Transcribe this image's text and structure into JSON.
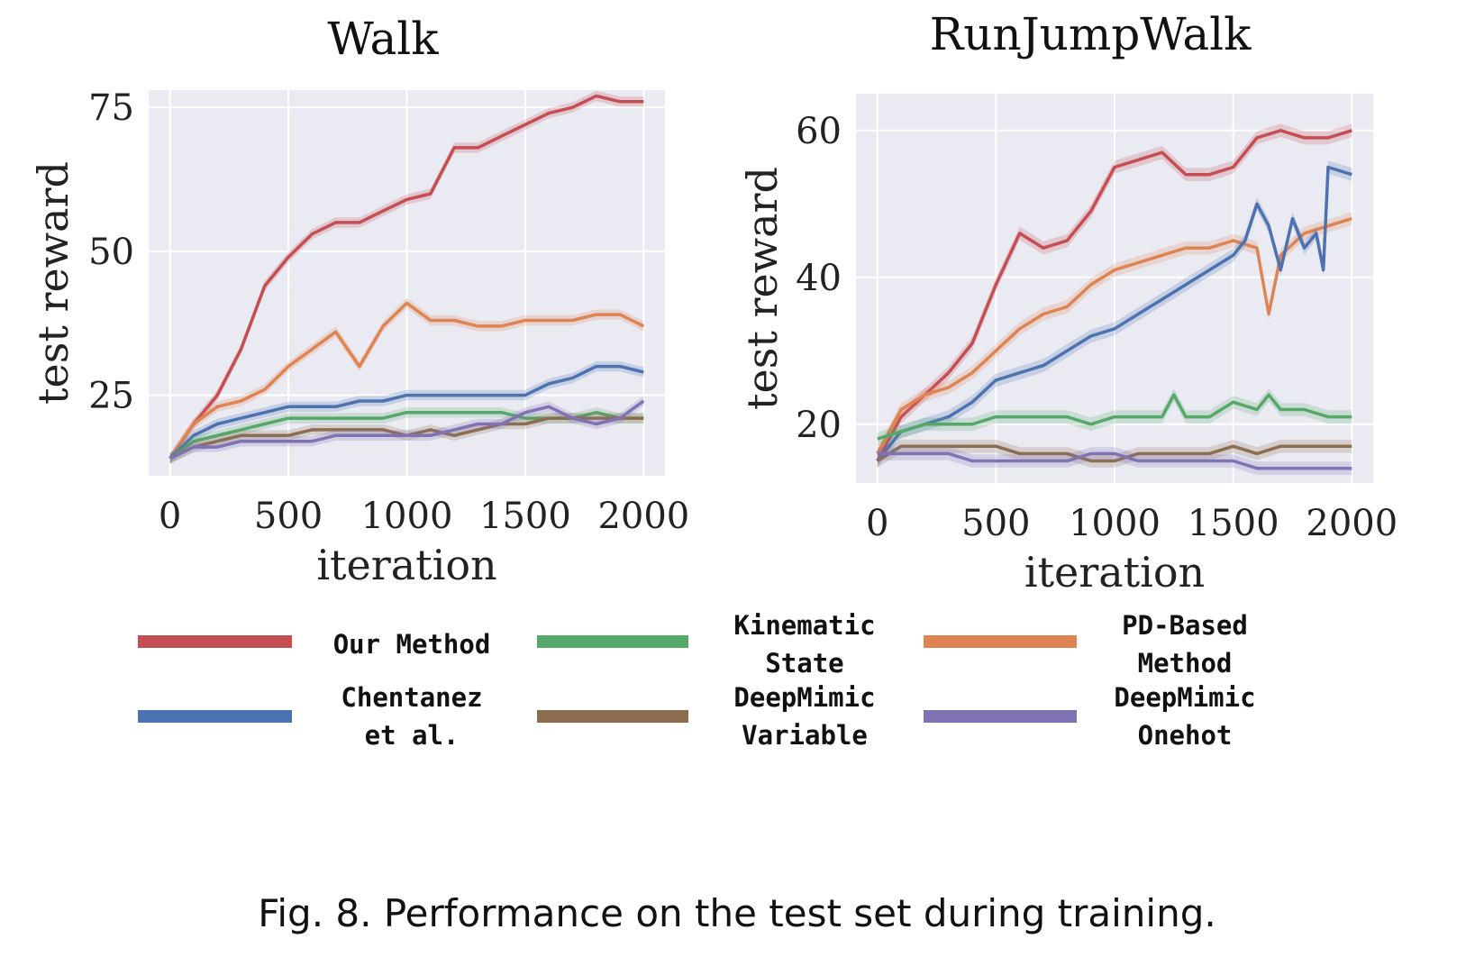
{
  "caption": "Fig. 8.  Performance on the test set during training.",
  "colors": {
    "our": "#c44e52",
    "chentanez": "#4c72b0",
    "kinematic": "#55a868",
    "deepmimic_var": "#8c6d50",
    "pd": "#dd8452",
    "deepmimic_onehot": "#8172b3"
  },
  "legend": [
    {
      "key": "our",
      "lines": [
        "Our Method"
      ]
    },
    {
      "key": "kinematic",
      "lines": [
        "Kinematic",
        "State"
      ]
    },
    {
      "key": "pd",
      "lines": [
        "PD-Based",
        "Method"
      ]
    },
    {
      "key": "chentanez",
      "lines": [
        "Chentanez",
        "et al."
      ]
    },
    {
      "key": "deepmimic_var",
      "lines": [
        "DeepMimic",
        "Variable"
      ]
    },
    {
      "key": "deepmimic_onehot",
      "lines": [
        "DeepMimic",
        "Onehot"
      ]
    }
  ],
  "chart_data": [
    {
      "type": "line",
      "title": "Walk",
      "xlabel": "iteration",
      "ylabel": "test reward",
      "xlim": [
        -90,
        2090
      ],
      "ylim": [
        11,
        78
      ],
      "xticks": [
        0,
        500,
        1000,
        1500,
        2000
      ],
      "yticks": [
        25,
        50,
        75
      ],
      "grid": true,
      "series": [
        {
          "key": "our",
          "name": "Our Method",
          "x": [
            0,
            100,
            200,
            300,
            400,
            500,
            600,
            700,
            800,
            900,
            1000,
            1100,
            1200,
            1300,
            1400,
            1500,
            1600,
            1700,
            1800,
            1900,
            2000
          ],
          "y": [
            14,
            20,
            25,
            33,
            44,
            49,
            53,
            55,
            55,
            57,
            59,
            60,
            68,
            68,
            70,
            72,
            74,
            75,
            77,
            76,
            76
          ]
        },
        {
          "key": "pd",
          "name": "PD-Based Method",
          "x": [
            0,
            100,
            200,
            300,
            400,
            500,
            600,
            700,
            800,
            900,
            1000,
            1100,
            1200,
            1300,
            1400,
            1500,
            1600,
            1700,
            1800,
            1900,
            2000
          ],
          "y": [
            14,
            20,
            23,
            24,
            26,
            30,
            33,
            36,
            30,
            37,
            41,
            38,
            38,
            37,
            37,
            38,
            38,
            38,
            39,
            39,
            37
          ]
        },
        {
          "key": "chentanez",
          "name": "Chentanez et al.",
          "x": [
            0,
            100,
            200,
            300,
            400,
            500,
            600,
            700,
            800,
            900,
            1000,
            1100,
            1200,
            1300,
            1400,
            1500,
            1600,
            1700,
            1800,
            1900,
            2000
          ],
          "y": [
            14,
            18,
            20,
            21,
            22,
            23,
            23,
            23,
            24,
            24,
            25,
            25,
            25,
            25,
            25,
            25,
            27,
            28,
            30,
            30,
            29
          ]
        },
        {
          "key": "kinematic",
          "name": "Kinematic State",
          "x": [
            0,
            100,
            200,
            300,
            400,
            500,
            600,
            700,
            800,
            900,
            1000,
            1100,
            1200,
            1300,
            1400,
            1500,
            1600,
            1700,
            1800,
            1900,
            2000
          ],
          "y": [
            14,
            17,
            18,
            19,
            20,
            21,
            21,
            21,
            21,
            21,
            22,
            22,
            22,
            22,
            22,
            21,
            21,
            21,
            22,
            21,
            21
          ]
        },
        {
          "key": "deepmimic_var",
          "name": "DeepMimic Variable",
          "x": [
            0,
            100,
            200,
            300,
            400,
            500,
            600,
            700,
            800,
            900,
            1000,
            1100,
            1200,
            1300,
            1400,
            1500,
            1600,
            1700,
            1800,
            1900,
            2000
          ],
          "y": [
            14,
            16,
            17,
            18,
            18,
            18,
            19,
            19,
            19,
            19,
            18,
            19,
            18,
            19,
            20,
            20,
            21,
            21,
            21,
            21,
            21
          ]
        },
        {
          "key": "deepmimic_onehot",
          "name": "DeepMimic Onehot",
          "x": [
            0,
            100,
            200,
            300,
            400,
            500,
            600,
            700,
            800,
            900,
            1000,
            1100,
            1200,
            1300,
            1400,
            1500,
            1600,
            1700,
            1800,
            1900,
            2000
          ],
          "y": [
            14,
            16,
            16,
            17,
            17,
            17,
            17,
            18,
            18,
            18,
            18,
            18,
            19,
            20,
            20,
            22,
            23,
            21,
            20,
            21,
            24
          ]
        }
      ]
    },
    {
      "type": "line",
      "title": "RunJumpWalk",
      "xlabel": "iteration",
      "ylabel": "test reward",
      "xlim": [
        -90,
        2090
      ],
      "ylim": [
        12,
        65
      ],
      "xticks": [
        0,
        500,
        1000,
        1500,
        2000
      ],
      "yticks": [
        20,
        40,
        60
      ],
      "grid": true,
      "series": [
        {
          "key": "our",
          "name": "Our Method",
          "x": [
            0,
            100,
            200,
            300,
            400,
            500,
            600,
            700,
            800,
            900,
            1000,
            1100,
            1200,
            1300,
            1400,
            1500,
            1600,
            1700,
            1800,
            1900,
            2000
          ],
          "y": [
            15,
            21,
            24,
            27,
            31,
            39,
            46,
            44,
            45,
            49,
            55,
            56,
            57,
            54,
            54,
            55,
            59,
            60,
            59,
            59,
            60
          ]
        },
        {
          "key": "pd",
          "name": "PD-Based Method",
          "x": [
            0,
            100,
            200,
            300,
            400,
            500,
            600,
            700,
            800,
            900,
            1000,
            1100,
            1200,
            1300,
            1400,
            1500,
            1600,
            1650,
            1700,
            1800,
            1900,
            2000
          ],
          "y": [
            16,
            22,
            24,
            25,
            27,
            30,
            33,
            35,
            36,
            39,
            41,
            42,
            43,
            44,
            44,
            45,
            44,
            35,
            43,
            46,
            47,
            48
          ]
        },
        {
          "key": "chentanez",
          "name": "Chentanez et al.",
          "x": [
            0,
            100,
            200,
            300,
            400,
            500,
            600,
            700,
            800,
            900,
            1000,
            1100,
            1200,
            1300,
            1400,
            1500,
            1550,
            1600,
            1650,
            1700,
            1750,
            1800,
            1850,
            1880,
            1900,
            2000
          ],
          "y": [
            15,
            19,
            20,
            21,
            23,
            26,
            27,
            28,
            30,
            32,
            33,
            35,
            37,
            39,
            41,
            43,
            45,
            50,
            47,
            41,
            48,
            44,
            46,
            41,
            55,
            54
          ]
        },
        {
          "key": "kinematic",
          "name": "Kinematic State",
          "x": [
            0,
            100,
            200,
            300,
            400,
            500,
            600,
            700,
            800,
            900,
            1000,
            1100,
            1200,
            1250,
            1300,
            1400,
            1500,
            1600,
            1650,
            1700,
            1800,
            1900,
            2000
          ],
          "y": [
            18,
            19,
            20,
            20,
            20,
            21,
            21,
            21,
            21,
            20,
            21,
            21,
            21,
            24,
            21,
            21,
            23,
            22,
            24,
            22,
            22,
            21,
            21
          ]
        },
        {
          "key": "deepmimic_var",
          "name": "DeepMimic Variable",
          "x": [
            0,
            100,
            200,
            300,
            400,
            500,
            600,
            700,
            800,
            900,
            1000,
            1100,
            1200,
            1300,
            1400,
            1500,
            1600,
            1700,
            1800,
            1900,
            2000
          ],
          "y": [
            15,
            17,
            17,
            17,
            17,
            17,
            16,
            16,
            16,
            15,
            15,
            16,
            16,
            16,
            16,
            17,
            16,
            17,
            17,
            17,
            17
          ]
        },
        {
          "key": "deepmimic_onehot",
          "name": "DeepMimic Onehot",
          "x": [
            0,
            100,
            200,
            300,
            400,
            500,
            600,
            700,
            800,
            900,
            1000,
            1100,
            1200,
            1300,
            1400,
            1500,
            1600,
            1700,
            1800,
            1900,
            2000
          ],
          "y": [
            16,
            16,
            16,
            16,
            15,
            15,
            15,
            15,
            15,
            16,
            16,
            15,
            15,
            15,
            15,
            15,
            14,
            14,
            14,
            14,
            14
          ]
        }
      ]
    }
  ]
}
